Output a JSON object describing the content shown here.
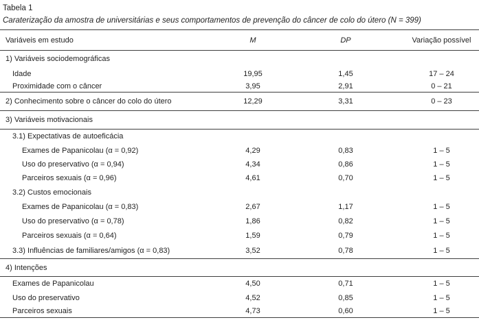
{
  "colors": {
    "text": "#222222",
    "rule": "#3d3d3d",
    "background": "#ffffff"
  },
  "table": {
    "number": "Tabela 1",
    "caption": "Caraterização da amostra de universitárias e seus comportamentos de prevenção do câncer de colo do útero (N = 399)",
    "columns": {
      "variable": "Variáveis em estudo",
      "m": "M",
      "dp": "DP",
      "range": "Variação possível"
    },
    "rows": [
      {
        "label": "1) Variáveis sociodemográficas",
        "indent": 0,
        "m": "",
        "dp": "",
        "range": ""
      },
      {
        "label": "Idade",
        "indent": 1,
        "m": "19,95",
        "dp": "1,45",
        "range": "17 – 24"
      },
      {
        "label": "Proximidade com o câncer",
        "indent": 1,
        "m": "3,95",
        "dp": "2,91",
        "range": "0 – 21"
      },
      {
        "label": "2) Conhecimento sobre o câncer do colo do útero",
        "indent": 0,
        "m": "12,29",
        "dp": "3,31",
        "range": "0 – 23"
      },
      {
        "label": "3) Variáveis motivacionais",
        "indent": 0,
        "m": "",
        "dp": "",
        "range": ""
      },
      {
        "label": "3.1) Expectativas de autoeficácia",
        "indent": 1,
        "m": "",
        "dp": "",
        "range": ""
      },
      {
        "label": "Exames de Papanicolau (α = 0,92)",
        "indent": 2,
        "m": "4,29",
        "dp": "0,83",
        "range": "1 – 5"
      },
      {
        "label": "Uso do preservativo (α = 0,94)",
        "indent": 2,
        "m": "4,34",
        "dp": "0,86",
        "range": "1 – 5"
      },
      {
        "label": "Parceiros sexuais (α = 0,96)",
        "indent": 2,
        "m": "4,61",
        "dp": "0,70",
        "range": "1 – 5"
      },
      {
        "label": "3.2) Custos emocionais",
        "indent": 1,
        "m": "",
        "dp": "",
        "range": ""
      },
      {
        "label": "Exames de Papanicolau (α = 0,83)",
        "indent": 2,
        "m": "2,67",
        "dp": "1,17",
        "range": "1 – 5"
      },
      {
        "label": "Uso do preservativo (α = 0,78)",
        "indent": 2,
        "m": "1,86",
        "dp": "0,82",
        "range": "1 – 5"
      },
      {
        "label": "Parceiros sexuais (α = 0,64)",
        "indent": 2,
        "m": "1,59",
        "dp": "0,79",
        "range": "1 – 5"
      },
      {
        "label": "3.3) Influências de familiares/amigos (α = 0,83)",
        "indent": 1,
        "m": "3,52",
        "dp": "0,78",
        "range": "1 – 5"
      },
      {
        "label": "4) Intenções",
        "indent": 0,
        "m": "",
        "dp": "",
        "range": ""
      },
      {
        "label": "Exames de Papanicolau",
        "indent": 1,
        "m": "4,50",
        "dp": "0,71",
        "range": "1 – 5"
      },
      {
        "label": "Uso do preservativo",
        "indent": 1,
        "m": "4,52",
        "dp": "0,85",
        "range": "1 – 5"
      },
      {
        "label": "Parceiros sexuais",
        "indent": 1,
        "m": "4,73",
        "dp": "0,60",
        "range": "1 – 5"
      }
    ]
  }
}
